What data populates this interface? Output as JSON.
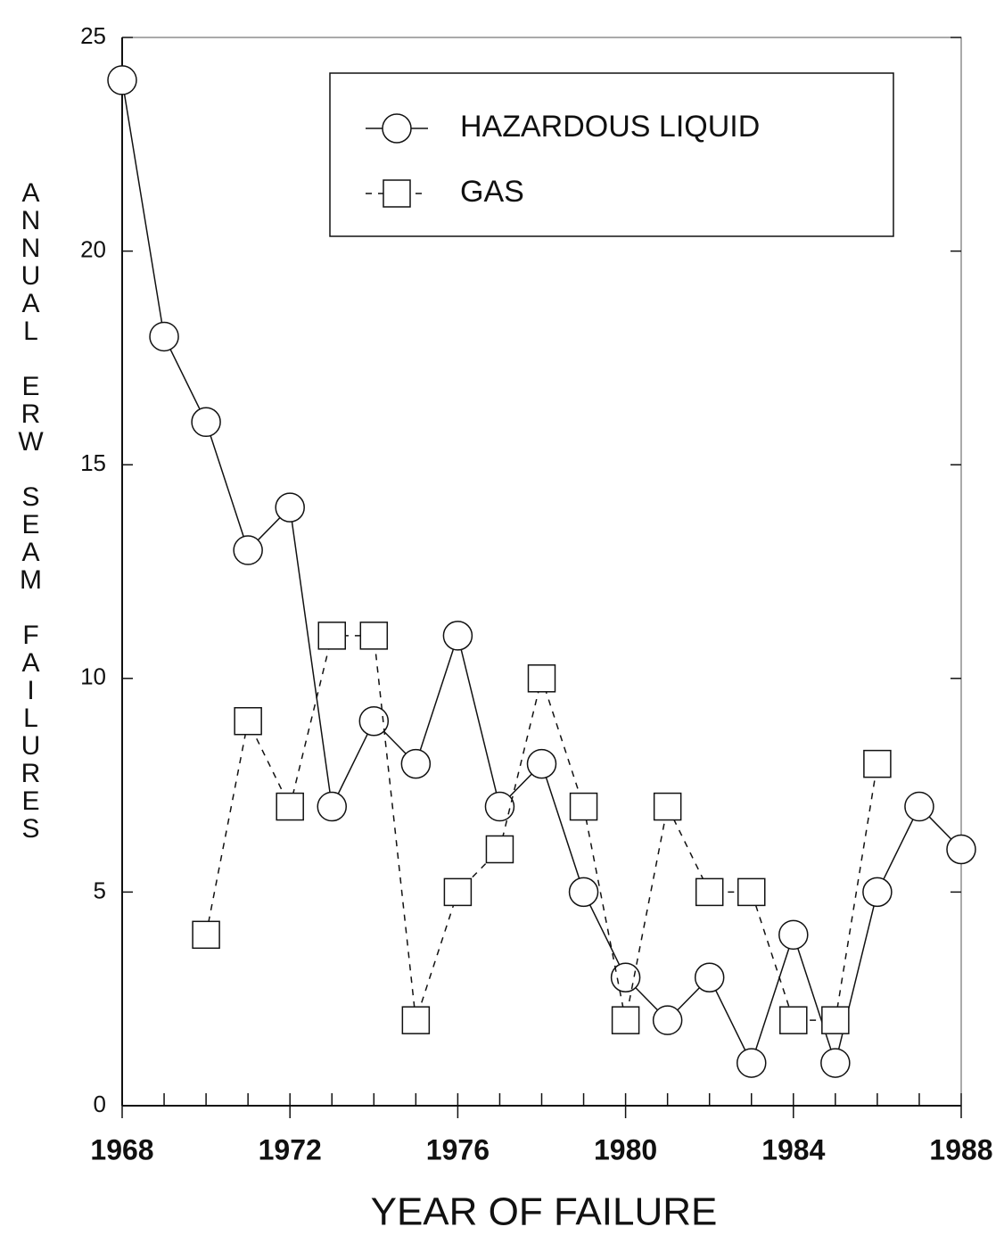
{
  "chart_data": {
    "type": "line",
    "x_label": "YEAR OF FAILURE",
    "y_label": "ANNUAL ERW SEAM FAILURES",
    "x": [
      1968,
      1969,
      1970,
      1971,
      1972,
      1973,
      1974,
      1975,
      1976,
      1977,
      1978,
      1979,
      1980,
      1981,
      1982,
      1983,
      1984,
      1985,
      1986,
      1987,
      1988
    ],
    "series": [
      {
        "name": "HAZARDOUS LIQUID",
        "color": "#111111",
        "marker": "circle",
        "dash": "solid",
        "values": [
          24,
          18,
          16,
          13,
          14,
          7,
          9,
          8,
          11,
          7,
          8,
          5,
          3,
          2,
          3,
          1,
          4,
          1,
          5,
          7,
          6
        ]
      },
      {
        "name": "GAS",
        "color": "#111111",
        "marker": "square",
        "dash": "dashed",
        "values": [
          null,
          null,
          4,
          9,
          7,
          11,
          11,
          2,
          5,
          6,
          10,
          7,
          2,
          7,
          5,
          5,
          2,
          2,
          8,
          null,
          null
        ]
      }
    ],
    "xlim": [
      1968,
      1988
    ],
    "xticks": [
      1968,
      1972,
      1976,
      1980,
      1984,
      1988
    ],
    "ylim": [
      0,
      25
    ],
    "yticks": [
      0,
      5,
      10,
      15,
      20,
      25
    ],
    "legend": "top-right"
  }
}
